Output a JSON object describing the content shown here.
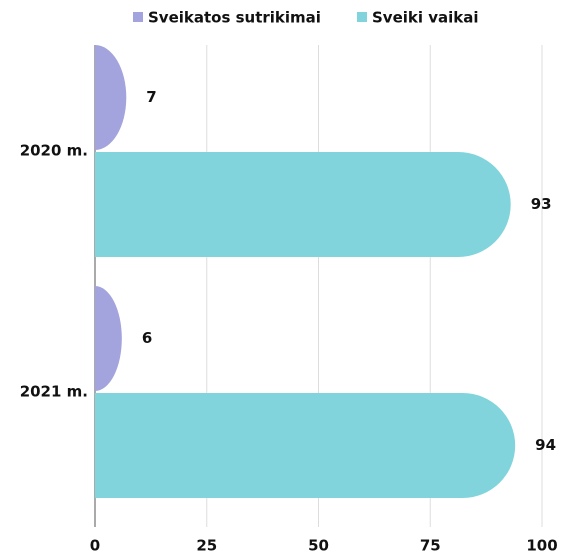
{
  "chart_data": {
    "type": "bar",
    "orientation": "horizontal",
    "categories": [
      "2020 m.",
      "2021 m."
    ],
    "series": [
      {
        "name": "Sveikatos sutrikimai",
        "color": "#a3a3dd",
        "values": [
          7,
          6
        ]
      },
      {
        "name": "Sveiki vaikai",
        "color": "#82d4dc",
        "values": [
          93,
          94
        ]
      }
    ],
    "xlim": [
      0,
      100
    ],
    "xticks": [
      0,
      25,
      50,
      75,
      100
    ],
    "grid": true,
    "legend": "top"
  }
}
